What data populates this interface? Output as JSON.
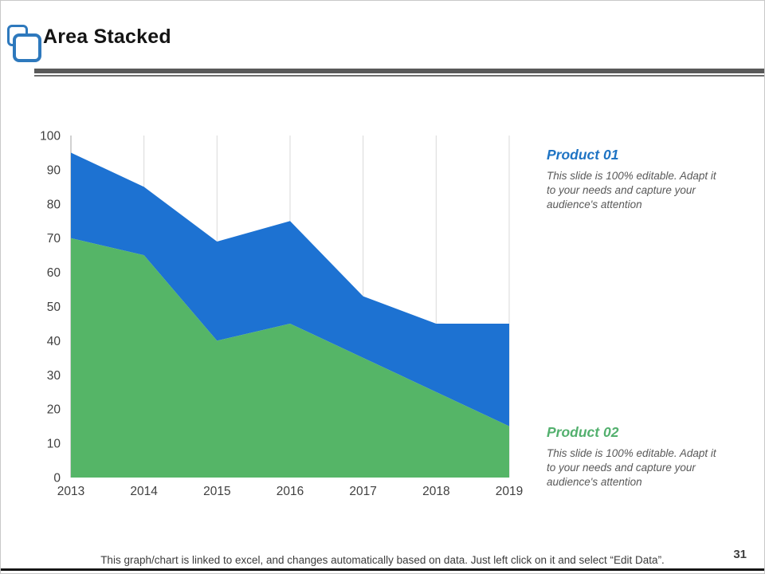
{
  "slide": {
    "title": "Area Stacked",
    "page_number": "31",
    "footer": "This graph/chart is linked to excel, and changes automatically based on data. Just left click on it and select “Edit Data”."
  },
  "products": [
    {
      "name": "Product 01",
      "color": "#1f74c4",
      "description": "This slide is 100% editable. Adapt it to your needs and capture your audience's attention"
    },
    {
      "name": "Product 02",
      "color": "#53b06e",
      "description": "This slide is 100% editable. Adapt it to your needs and capture your audience's attention"
    }
  ],
  "chart_data": {
    "type": "area",
    "stacked": true,
    "title": "",
    "xlabel": "",
    "ylabel": "",
    "categories": [
      "2013",
      "2014",
      "2015",
      "2016",
      "2017",
      "2018",
      "2019"
    ],
    "series": [
      {
        "name": "Product 02",
        "color": "#55b567",
        "values": [
          70,
          65,
          40,
          45,
          35,
          25,
          15
        ]
      },
      {
        "name": "Product 01",
        "color": "#1d72d2",
        "values": [
          25,
          20,
          29,
          30,
          18,
          20,
          30
        ]
      }
    ],
    "stacked_totals": [
      95,
      85,
      69,
      75,
      53,
      45,
      45
    ],
    "ylim": [
      0,
      100
    ],
    "y_ticks": [
      0,
      10,
      20,
      30,
      40,
      50,
      60,
      70,
      80,
      90,
      100
    ],
    "grid": "vertical-only",
    "gridline_color": "#d9d9d9",
    "axis_color": "#b8b8b8",
    "tick_label_color": "#3f3f3f",
    "legend_position": "none"
  }
}
